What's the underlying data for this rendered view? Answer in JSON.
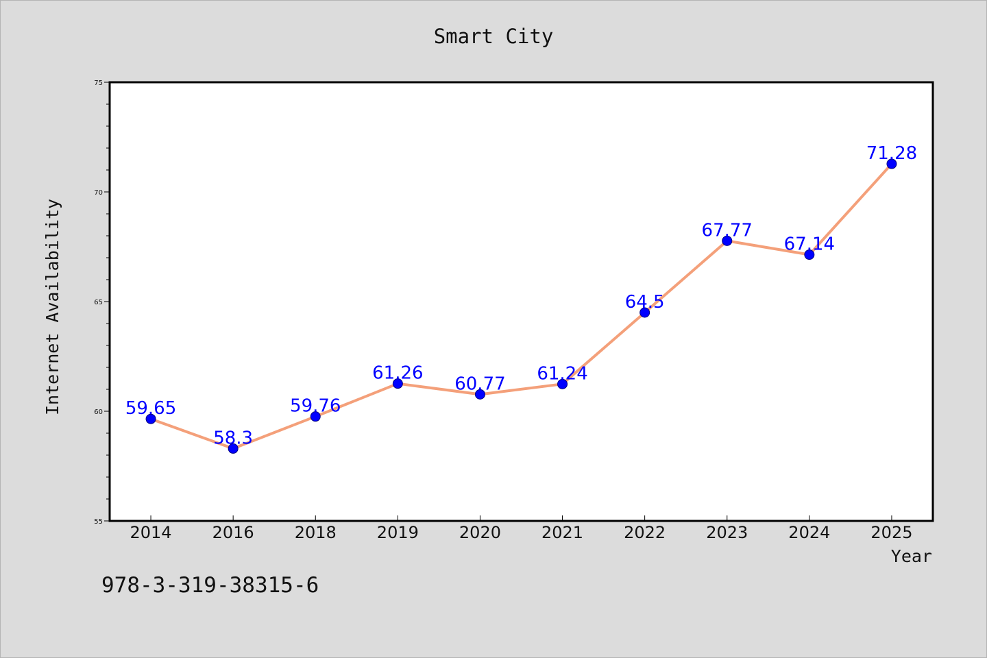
{
  "chart_data": {
    "type": "line",
    "title": "Smart City",
    "xlabel": "Year",
    "ylabel": "Internet Availability",
    "categories": [
      "2014",
      "2016",
      "2018",
      "2019",
      "2020",
      "2021",
      "2022",
      "2023",
      "2024",
      "2025"
    ],
    "values": [
      59.65,
      58.3,
      59.76,
      61.26,
      60.77,
      61.24,
      64.5,
      67.77,
      67.14,
      71.28
    ],
    "data_labels": [
      "59.65",
      "58.3",
      "59.76",
      "61.26",
      "60.77",
      "61.24",
      "64.5",
      "67.77",
      "67.14",
      "71.28"
    ],
    "ylim": [
      55,
      75
    ],
    "y_major_ticks": [
      55,
      60,
      65,
      70,
      75
    ],
    "y_minor_step": 1,
    "grid": false,
    "legend": "none",
    "line_color": "#f4a07a",
    "marker_color": "#0000ff",
    "label_color": "#0000ff"
  },
  "footer": {
    "isbn": "978-3-319-38315-6"
  },
  "colors": {
    "background": "#dcdcdc",
    "plot_background": "#ffffff",
    "axis": "#000000"
  }
}
